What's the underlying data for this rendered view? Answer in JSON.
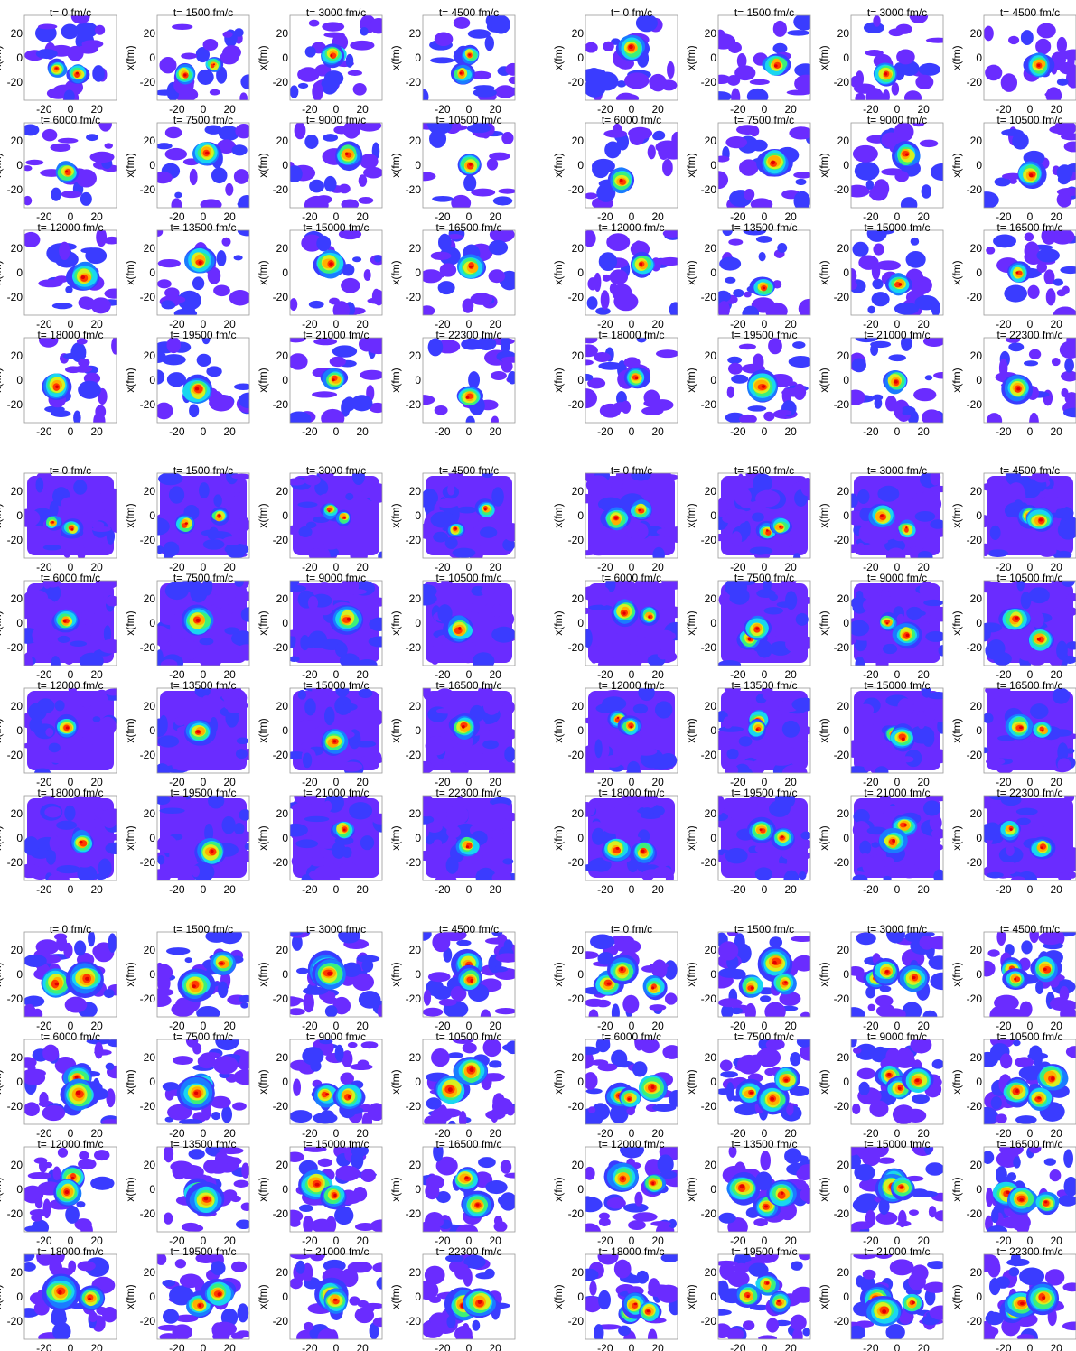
{
  "figure": {
    "colors": {
      "background": "#ffffff",
      "frame": "#9a9a9a",
      "colormap": [
        "#6a2cff",
        "#3a3cff",
        "#1a7cff",
        "#19d6f0",
        "#3cf07a",
        "#d8f020",
        "#ffb000",
        "#ff3a00",
        "#e00000"
      ]
    },
    "blocks": [
      "top-left",
      "top-right",
      "middle-left",
      "middle-right",
      "bottom-left",
      "bottom-right"
    ],
    "panel_titles": [
      "t= 0 fm/c",
      "t= 1500 fm/c",
      "t= 3000 fm/c",
      "t= 4500 fm/c",
      "t= 6000 fm/c",
      "t= 7500 fm/c",
      "t= 9000 fm/c",
      "t= 10500 fm/c",
      "t= 12000 fm/c",
      "t= 13500 fm/c",
      "t= 15000 fm/c",
      "t= 16500 fm/c",
      "t= 18000 fm/c",
      "t= 19500 fm/c",
      "t= 21000 fm/c",
      "t= 22300 fm/c"
    ]
  },
  "chart_data": {
    "type": "heatmap",
    "ylabel": "x(fm)",
    "x_ticks": [
      "-20",
      "0",
      "20"
    ],
    "y_ticks": [
      "20",
      "0",
      "-20"
    ],
    "xlim": [
      -35,
      35
    ],
    "ylim": [
      -35,
      35
    ],
    "grid": false
  }
}
